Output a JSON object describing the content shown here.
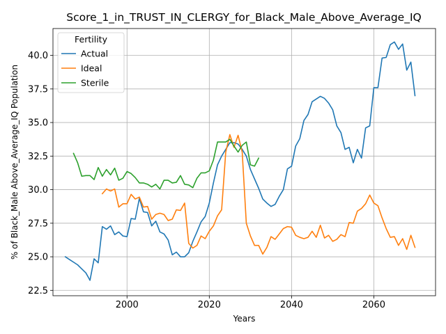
{
  "chart_data": {
    "type": "line",
    "title": "Score_1_in_TRUST_IN_CLERGY_for_Black_Male_Above_Average_IQ",
    "xlabel": "Years",
    "ylabel": "% of Black_Male Above_Average_IQ Population",
    "xlim": [
      1982,
      2075
    ],
    "ylim": [
      22.1,
      42.0
    ],
    "xticks": [
      2000,
      2020,
      2040,
      2060
    ],
    "yticks": [
      22.5,
      25.0,
      27.5,
      30.0,
      32.5,
      35.0,
      37.5,
      40.0
    ],
    "grid": true,
    "legend": {
      "title": "Fertility",
      "placement": "top-left"
    },
    "series": [
      {
        "name": "Actual",
        "color": "#1f77b4",
        "x": [
          1985,
          1986,
          1987,
          1988,
          1989,
          1990,
          1991,
          1992,
          1993,
          1994,
          1995,
          1996,
          1997,
          1998,
          1999,
          2000,
          2001,
          2002,
          2003,
          2004,
          2005,
          2006,
          2007,
          2008,
          2009,
          2010,
          2011,
          2012,
          2013,
          2014,
          2015,
          2016,
          2017,
          2018,
          2019,
          2020,
          2021,
          2022,
          2023,
          2024,
          2025,
          2026,
          2027,
          2028,
          2029,
          2030,
          2031,
          2032,
          2033,
          2034,
          2035,
          2036,
          2037,
          2038,
          2039,
          2040,
          2041,
          2042,
          2043,
          2044,
          2045,
          2046,
          2047,
          2048,
          2049,
          2050,
          2051,
          2052,
          2053,
          2054,
          2055,
          2056,
          2057,
          2058,
          2059,
          2060,
          2061,
          2062,
          2063,
          2064,
          2065,
          2066,
          2067,
          2068,
          2069,
          2070
        ],
        "y": [
          25.0,
          24.8,
          24.6,
          24.4,
          24.1,
          23.8,
          23.25,
          24.85,
          24.55,
          27.25,
          27.05,
          27.3,
          26.65,
          26.85,
          26.55,
          26.5,
          27.85,
          27.8,
          29.35,
          28.35,
          28.3,
          27.3,
          27.65,
          26.85,
          26.7,
          26.25,
          25.15,
          25.35,
          25.0,
          25.0,
          25.3,
          26.15,
          26.85,
          27.6,
          28.0,
          29.0,
          30.5,
          31.85,
          32.5,
          33.0,
          33.5,
          33.5,
          33.4,
          33.0,
          32.5,
          31.5,
          30.8,
          30.1,
          29.3,
          29.0,
          28.75,
          28.9,
          29.5,
          30.0,
          31.55,
          31.75,
          33.25,
          33.8,
          35.15,
          35.6,
          36.55,
          36.75,
          36.95,
          36.8,
          36.45,
          35.95,
          34.75,
          34.25,
          33.0,
          33.15,
          32.0,
          33.0,
          32.35,
          34.6,
          34.75,
          37.6,
          37.6,
          39.8,
          39.85,
          40.8,
          41.0,
          40.45,
          40.85,
          38.9,
          39.5,
          37.0
        ]
      },
      {
        "name": "Ideal",
        "color": "#ff7f0e",
        "x": [
          1994,
          1995,
          1996,
          1997,
          1998,
          1999,
          2000,
          2001,
          2002,
          2003,
          2004,
          2005,
          2006,
          2007,
          2008,
          2009,
          2010,
          2011,
          2012,
          2013,
          2014,
          2015,
          2016,
          2017,
          2018,
          2019,
          2020,
          2021,
          2022,
          2023,
          2024,
          2025,
          2026,
          2027,
          2028,
          2029,
          2030,
          2031,
          2032,
          2033,
          2034,
          2035,
          2036,
          2037,
          2038,
          2039,
          2040,
          2041,
          2042,
          2043,
          2044,
          2045,
          2046,
          2047,
          2048,
          2049,
          2050,
          2051,
          2052,
          2053,
          2054,
          2055,
          2056,
          2057,
          2058,
          2059,
          2060,
          2061,
          2062,
          2063,
          2064,
          2065,
          2066,
          2067,
          2068,
          2069,
          2070
        ],
        "y": [
          29.7,
          30.05,
          29.9,
          30.05,
          28.7,
          28.95,
          28.95,
          29.65,
          29.3,
          29.45,
          28.7,
          28.75,
          27.8,
          28.15,
          28.25,
          28.15,
          27.7,
          27.8,
          28.5,
          28.45,
          29.0,
          26.0,
          25.65,
          25.85,
          26.55,
          26.35,
          26.9,
          27.3,
          28.05,
          28.5,
          32.8,
          34.1,
          33.15,
          34.05,
          32.8,
          27.5,
          26.55,
          25.85,
          25.85,
          25.2,
          25.7,
          26.5,
          26.3,
          26.7,
          27.1,
          27.25,
          27.2,
          26.6,
          26.45,
          26.35,
          26.45,
          26.9,
          26.45,
          27.35,
          26.4,
          26.6,
          26.15,
          26.3,
          26.65,
          26.5,
          27.55,
          27.5,
          28.4,
          28.6,
          28.95,
          29.6,
          29.0,
          28.8,
          27.9,
          27.1,
          26.45,
          26.5,
          25.85,
          26.35,
          25.55,
          26.6,
          25.7
        ]
      },
      {
        "name": "Sterile",
        "color": "#2ca02c",
        "x": [
          1987,
          1988,
          1989,
          1990,
          1991,
          1992,
          1993,
          1994,
          1995,
          1996,
          1997,
          1998,
          1999,
          2000,
          2001,
          2002,
          2003,
          2004,
          2005,
          2006,
          2007,
          2008,
          2009,
          2010,
          2011,
          2012,
          2013,
          2014,
          2015,
          2016,
          2017,
          2018,
          2019,
          2020,
          2021,
          2022,
          2023,
          2024,
          2025,
          2026,
          2027,
          2028,
          2029,
          2030,
          2031,
          2032
        ],
        "y": [
          32.7,
          32.0,
          31.0,
          31.05,
          31.05,
          30.75,
          31.65,
          31.0,
          31.5,
          31.1,
          31.6,
          30.7,
          30.85,
          31.35,
          31.2,
          30.9,
          30.5,
          30.5,
          30.4,
          30.2,
          30.4,
          30.05,
          30.7,
          30.7,
          30.5,
          30.55,
          31.05,
          30.4,
          30.35,
          30.15,
          30.85,
          31.25,
          31.25,
          31.4,
          32.2,
          33.55,
          33.55,
          33.55,
          33.75,
          33.25,
          32.8,
          33.3,
          33.55,
          31.85,
          31.75,
          32.35
        ]
      }
    ]
  }
}
